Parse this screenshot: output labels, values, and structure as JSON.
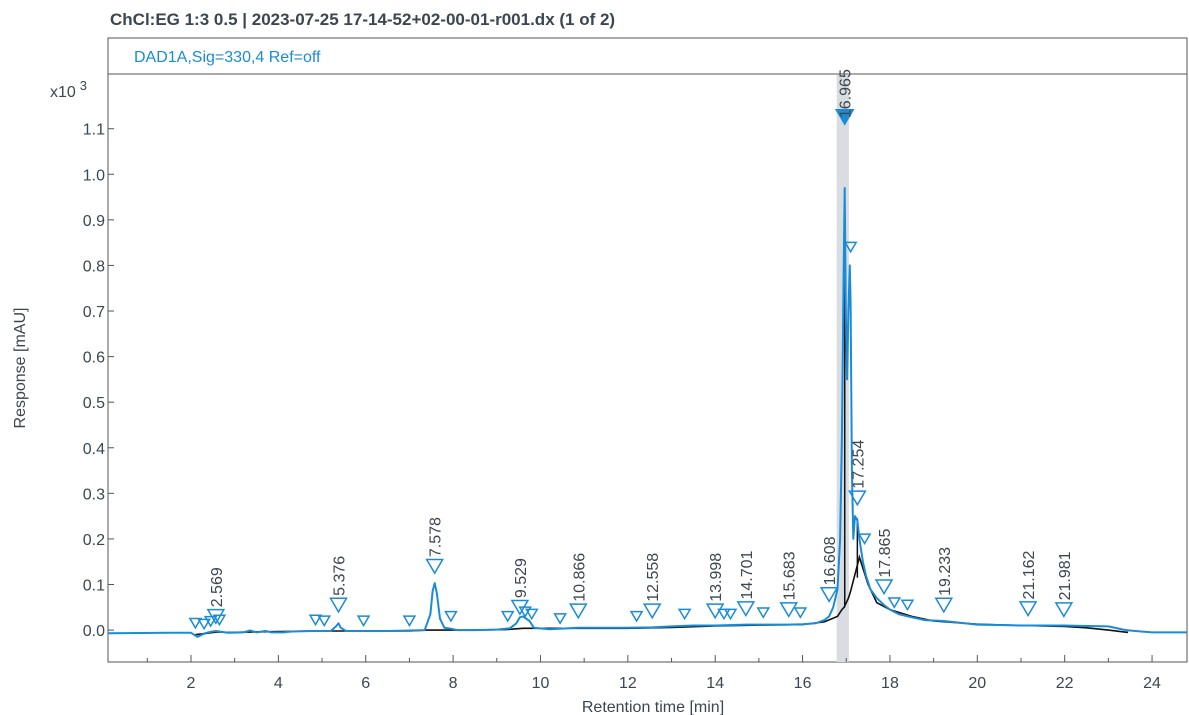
{
  "title": "ChCl:EG 1:3 0.5 | 2023-07-25 17-14-52+02-00-01-r001.dx (1 of 2)",
  "colors": {
    "signal": "#1a8bd6",
    "baseline": "#111111",
    "text": "#3c4650",
    "axis": "#555555",
    "highlight": "#d9dde2"
  },
  "chart_data": {
    "type": "line",
    "legend": "DAD1A,Sig=330,4  Ref=off",
    "ylabel": "Response [mAU]",
    "xlabel": "Retention time [min]",
    "y_multiplier": "x10 3",
    "xlim": [
      0.1,
      24.8
    ],
    "ylim": [
      -0.07,
      1.22
    ],
    "x_ticks": [
      2,
      4,
      6,
      8,
      10,
      12,
      14,
      16,
      18,
      20,
      22,
      24
    ],
    "y_ticks": [
      0.0,
      0.1,
      0.2,
      0.3,
      0.4,
      0.5,
      0.6,
      0.7,
      0.8,
      0.9,
      1.0,
      1.1
    ],
    "y_tick_labels": [
      "0.0",
      "0.1",
      "0.2",
      "0.3",
      "0.4",
      "0.5",
      "0.6",
      "0.7",
      "0.8",
      "0.9",
      "1.0",
      "1.1"
    ],
    "selected_peak_rt": 16.965,
    "selected_region": [
      16.78,
      17.06
    ],
    "labeled_peaks": [
      {
        "rt": 2.569,
        "label": "2.569",
        "y": 0.015
      },
      {
        "rt": 5.376,
        "label": "5.376",
        "y": 0.04
      },
      {
        "rt": 7.578,
        "label": "7.578",
        "y": 0.125
      },
      {
        "rt": 9.529,
        "label": "9.529",
        "y": 0.035
      },
      {
        "rt": 10.866,
        "label": "10.866",
        "y": 0.027
      },
      {
        "rt": 12.558,
        "label": "12.558",
        "y": 0.027
      },
      {
        "rt": 13.998,
        "label": "13.998",
        "y": 0.027
      },
      {
        "rt": 14.701,
        "label": "14.701",
        "y": 0.032
      },
      {
        "rt": 15.683,
        "label": "15.683",
        "y": 0.03
      },
      {
        "rt": 16.608,
        "label": "16.608",
        "y": 0.063
      },
      {
        "rt": 16.965,
        "label": "16.965",
        "y": 1.11,
        "selected": true
      },
      {
        "rt": 17.254,
        "label": "17.254",
        "y": 0.275
      },
      {
        "rt": 17.865,
        "label": "17.865",
        "y": 0.08
      },
      {
        "rt": 19.233,
        "label": "19.233",
        "y": 0.04
      },
      {
        "rt": 21.162,
        "label": "21.162",
        "y": 0.032
      },
      {
        "rt": 21.981,
        "label": "21.981",
        "y": 0.03
      }
    ],
    "unlabeled_peaks": [
      {
        "rt": 2.1,
        "y": 0.005
      },
      {
        "rt": 2.3,
        "y": 0.003
      },
      {
        "rt": 2.45,
        "y": 0.009
      },
      {
        "rt": 2.65,
        "y": 0.012
      },
      {
        "rt": 4.85,
        "y": 0.012
      },
      {
        "rt": 5.05,
        "y": 0.01
      },
      {
        "rt": 5.95,
        "y": 0.01
      },
      {
        "rt": 7.0,
        "y": 0.01
      },
      {
        "rt": 7.95,
        "y": 0.02
      },
      {
        "rt": 9.25,
        "y": 0.02
      },
      {
        "rt": 9.65,
        "y": 0.03
      },
      {
        "rt": 9.8,
        "y": 0.025
      },
      {
        "rt": 10.45,
        "y": 0.015
      },
      {
        "rt": 12.2,
        "y": 0.02
      },
      {
        "rt": 13.3,
        "y": 0.025
      },
      {
        "rt": 14.2,
        "y": 0.025
      },
      {
        "rt": 14.35,
        "y": 0.025
      },
      {
        "rt": 15.1,
        "y": 0.028
      },
      {
        "rt": 15.95,
        "y": 0.028
      },
      {
        "rt": 17.1,
        "y": 0.83
      },
      {
        "rt": 17.42,
        "y": 0.19
      },
      {
        "rt": 18.1,
        "y": 0.05
      },
      {
        "rt": 18.4,
        "y": 0.045
      }
    ],
    "signal": {
      "name": "DAD1A,Sig=330,4  Ref=off",
      "x": [
        0.1,
        1.5,
        2.0,
        2.1,
        2.15,
        2.25,
        2.35,
        2.45,
        2.569,
        2.7,
        2.85,
        3.2,
        3.35,
        3.5,
        3.7,
        3.85,
        4.1,
        4.3,
        4.8,
        5.2,
        5.32,
        5.376,
        5.43,
        5.55,
        6.0,
        6.5,
        7.0,
        7.35,
        7.48,
        7.53,
        7.578,
        7.63,
        7.7,
        7.8,
        7.95,
        8.1,
        8.5,
        9.0,
        9.3,
        9.45,
        9.529,
        9.6,
        9.75,
        9.85,
        10.2,
        10.866,
        11.5,
        12.0,
        12.558,
        13.0,
        13.5,
        14.0,
        14.701,
        15.0,
        15.683,
        16.0,
        16.3,
        16.5,
        16.608,
        16.7,
        16.8,
        16.86,
        16.9,
        16.94,
        16.965,
        16.99,
        17.02,
        17.05,
        17.08,
        17.1,
        17.13,
        17.16,
        17.2,
        17.254,
        17.3,
        17.38,
        17.45,
        17.55,
        17.7,
        17.865,
        18.0,
        18.2,
        18.5,
        18.8,
        19.233,
        19.6,
        20.0,
        21.0,
        21.5,
        22.0,
        22.5,
        23.0,
        23.4,
        24.0,
        24.8
      ],
      "y": [
        -0.007,
        -0.006,
        -0.006,
        -0.012,
        -0.015,
        -0.01,
        -0.006,
        -0.004,
        -0.002,
        -0.004,
        -0.006,
        -0.005,
        -0.001,
        -0.005,
        -0.002,
        -0.005,
        -0.005,
        -0.003,
        -0.002,
        -0.002,
        0.008,
        0.015,
        0.005,
        -0.002,
        -0.002,
        -0.002,
        -0.001,
        0.0,
        0.035,
        0.085,
        0.103,
        0.08,
        0.025,
        0.005,
        0.003,
        0.0,
        0.0,
        0.001,
        0.004,
        0.015,
        0.028,
        0.03,
        0.02,
        0.005,
        0.002,
        0.005,
        0.005,
        0.005,
        0.006,
        0.008,
        0.01,
        0.01,
        0.012,
        0.012,
        0.012,
        0.013,
        0.015,
        0.022,
        0.03,
        0.05,
        0.09,
        0.2,
        0.42,
        0.78,
        0.97,
        0.7,
        0.55,
        0.7,
        0.8,
        0.72,
        0.35,
        0.2,
        0.25,
        0.24,
        0.2,
        0.15,
        0.12,
        0.09,
        0.07,
        0.055,
        0.045,
        0.035,
        0.028,
        0.022,
        0.02,
        0.016,
        0.012,
        0.01,
        0.01,
        0.01,
        0.009,
        0.008,
        0.0,
        -0.005,
        -0.005
      ]
    },
    "baseline": {
      "name": "",
      "x": [
        2.1,
        2.6,
        2.85,
        4.8,
        6.3,
        7.0,
        7.4,
        8.3,
        9.2,
        9.6,
        10.0,
        12.0,
        13.0,
        14.0,
        15.0,
        16.0,
        16.5,
        16.8,
        16.9,
        16.95,
        17.0,
        17.05,
        17.1,
        17.3,
        17.5,
        17.7,
        18.0,
        18.5,
        19.0,
        20.0,
        21.0,
        22.0,
        22.5,
        23.0,
        23.45
      ],
      "y": [
        -0.01,
        -0.004,
        -0.005,
        -0.002,
        -0.002,
        -0.002,
        0.0,
        0.0,
        0.001,
        0.004,
        0.004,
        0.004,
        0.006,
        0.009,
        0.011,
        0.012,
        0.018,
        0.03,
        0.045,
        0.05,
        0.06,
        0.07,
        0.085,
        0.16,
        0.1,
        0.06,
        0.045,
        0.03,
        0.02,
        0.013,
        0.01,
        0.008,
        0.005,
        0.0,
        -0.005
      ]
    }
  }
}
